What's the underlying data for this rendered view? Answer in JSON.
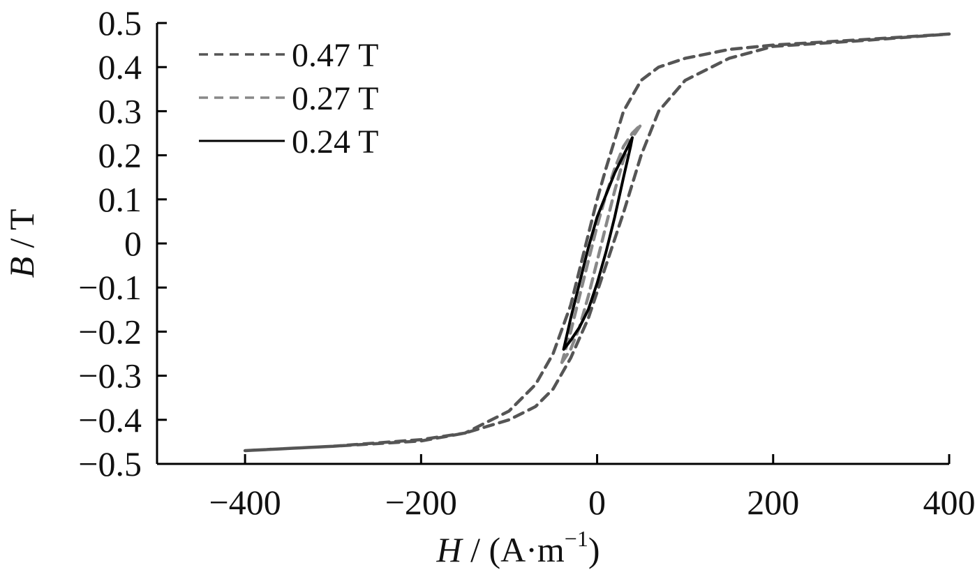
{
  "chart_data": {
    "type": "line",
    "xlabel": {
      "symbol": "H",
      "unit_prefix": " / (A·m",
      "unit_exp": "−1",
      "unit_suffix": ")"
    },
    "ylabel": {
      "symbol": "B",
      "unit": " / T"
    },
    "xlim": [
      -500,
      400
    ],
    "ylim": [
      -0.5,
      0.5
    ],
    "xticks": [
      -400,
      -200,
      0,
      200,
      400
    ],
    "xtick_labels": [
      "−400",
      "−200",
      "0",
      "200",
      "400"
    ],
    "yticks": [
      0.5,
      0.4,
      0.3,
      0.2,
      0.1,
      0,
      -0.1,
      -0.2,
      -0.3,
      -0.4,
      -0.5
    ],
    "ytick_labels": [
      "0.5",
      "0.4",
      "0.3",
      "0.2",
      "0.1",
      "0",
      "−0.1",
      "−0.2",
      "−0.3",
      "−0.4",
      "−0.5"
    ],
    "grid": false,
    "legend_position": "top-left",
    "series": [
      {
        "name": "0.47 T",
        "color": "#555555",
        "dash": "dashed",
        "x": [
          -400,
          -300,
          -200,
          -150,
          -100,
          -70,
          -50,
          -30,
          -10,
          0,
          10,
          30,
          50,
          70,
          100,
          150,
          200,
          300,
          400,
          300,
          200,
          150,
          100,
          70,
          50,
          30,
          10,
          0,
          -10,
          -30,
          -50,
          -70,
          -100,
          -150,
          -200,
          -300,
          -400
        ],
        "y": [
          -0.47,
          -0.46,
          -0.448,
          -0.43,
          -0.4,
          -0.37,
          -0.33,
          -0.26,
          -0.17,
          -0.11,
          -0.05,
          0.07,
          0.2,
          0.3,
          0.37,
          0.42,
          0.447,
          0.46,
          0.475,
          0.462,
          0.45,
          0.44,
          0.42,
          0.4,
          0.37,
          0.3,
          0.17,
          0.1,
          0.02,
          -0.14,
          -0.25,
          -0.32,
          -0.38,
          -0.43,
          -0.445,
          -0.46,
          -0.47
        ]
      },
      {
        "name": "0.27 T",
        "color": "#888888",
        "dash": "dashed",
        "x": [
          -40,
          -30,
          -20,
          -10,
          0,
          10,
          20,
          30,
          40,
          50,
          40,
          30,
          20,
          10,
          0,
          -10,
          -20,
          -30,
          -40
        ],
        "y": [
          -0.27,
          -0.24,
          -0.19,
          -0.12,
          -0.04,
          0.04,
          0.12,
          0.19,
          0.24,
          0.27,
          0.25,
          0.22,
          0.17,
          0.11,
          0.04,
          -0.04,
          -0.12,
          -0.2,
          -0.27
        ]
      },
      {
        "name": "0.24 T",
        "color": "#000000",
        "dash": "solid",
        "x": [
          -38,
          -30,
          -20,
          -10,
          0,
          10,
          20,
          30,
          38,
          40,
          30,
          20,
          10,
          0,
          -10,
          -20,
          -30,
          -38
        ],
        "y": [
          -0.24,
          -0.22,
          -0.19,
          -0.15,
          -0.09,
          -0.02,
          0.06,
          0.15,
          0.22,
          0.24,
          0.2,
          0.16,
          0.11,
          0.06,
          -0.01,
          -0.09,
          -0.17,
          -0.24
        ]
      }
    ]
  }
}
